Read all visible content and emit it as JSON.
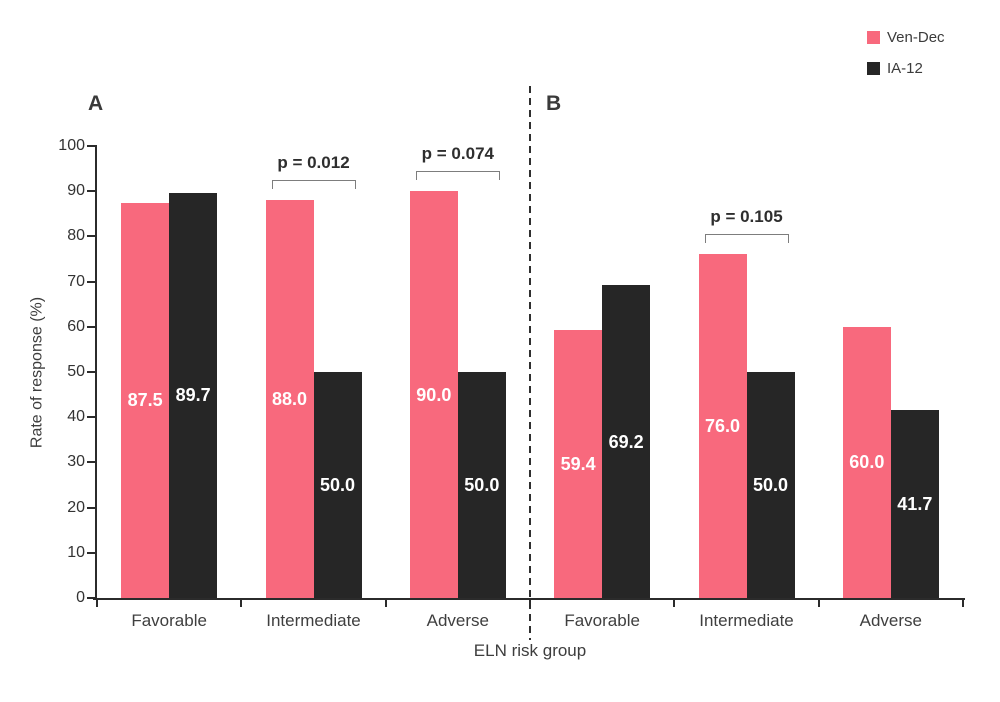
{
  "legend": {
    "items": [
      {
        "label": "Ven-Dec",
        "color": "#f8697d"
      },
      {
        "label": "IA-12",
        "color": "#262626"
      }
    ]
  },
  "axes": {
    "y_title": "Rate of response (%)",
    "x_title": "ELN risk group"
  },
  "chart_data": {
    "type": "bar",
    "xlabel": "ELN risk group",
    "ylabel": "Rate of response (%)",
    "ylim": [
      0,
      100
    ],
    "y_ticks": [
      0,
      10,
      20,
      30,
      40,
      50,
      60,
      70,
      80,
      90,
      100
    ],
    "grid": false,
    "legend_position": "top-right",
    "value_labels": "inside-center, one decimal, white bold",
    "panels": [
      {
        "label": "A",
        "categories": [
          "Favorable",
          "Intermediate",
          "Adverse"
        ],
        "series": [
          {
            "name": "Ven-Dec",
            "color": "#f8697d",
            "values": [
              87.5,
              88.0,
              90.0
            ]
          },
          {
            "name": "IA-12",
            "color": "#262626",
            "values": [
              89.7,
              50.0,
              50.0
            ]
          }
        ],
        "annotations": [
          {
            "category": "Intermediate",
            "text": "p = 0.012"
          },
          {
            "category": "Adverse",
            "text": "p = 0.074"
          }
        ]
      },
      {
        "label": "B",
        "categories": [
          "Favorable",
          "Intermediate",
          "Adverse"
        ],
        "series": [
          {
            "name": "Ven-Dec",
            "color": "#f8697d",
            "values": [
              59.4,
              76.0,
              60.0
            ]
          },
          {
            "name": "IA-12",
            "color": "#262626",
            "values": [
              69.2,
              50.0,
              41.7
            ]
          }
        ],
        "annotations": [
          {
            "category": "Intermediate",
            "text": "p = 0.105"
          }
        ]
      }
    ]
  }
}
